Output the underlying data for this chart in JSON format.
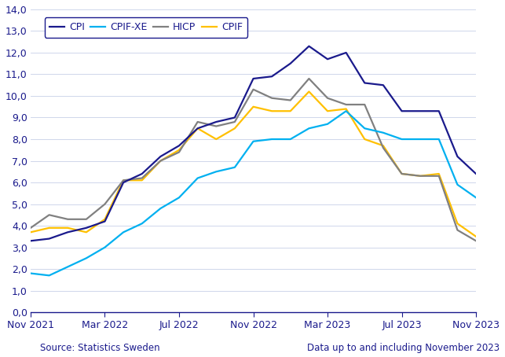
{
  "source_text": "Source: Statistics Sweden",
  "data_note": "Data up to and including November 2023",
  "ylim": [
    0.0,
    14.0
  ],
  "yticks": [
    0.0,
    1.0,
    2.0,
    3.0,
    4.0,
    5.0,
    6.0,
    7.0,
    8.0,
    9.0,
    10.0,
    11.0,
    12.0,
    13.0,
    14.0
  ],
  "xtick_labels": [
    "Nov 2021",
    "Mar 2022",
    "Jul 2022",
    "Nov 2022",
    "Mar 2023",
    "Jul 2023",
    "Nov 2023"
  ],
  "xtick_positions": [
    0,
    4,
    8,
    12,
    16,
    20,
    24
  ],
  "colors": {
    "CPI": "#1a1a8c",
    "CPIF_XE": "#00b0f0",
    "HICP": "#808080",
    "CPIF": "#ffc000"
  },
  "background_color": "#ffffff",
  "grid_color": "#c8d0e8",
  "axis_color": "#1a1a8c",
  "text_color": "#1a1a8c",
  "CPI": [
    3.3,
    3.4,
    3.7,
    3.9,
    4.2,
    6.0,
    6.4,
    7.2,
    7.7,
    8.5,
    8.8,
    9.0,
    10.8,
    10.9,
    11.5,
    12.3,
    11.7,
    12.0,
    10.6,
    10.5,
    9.3,
    9.3,
    9.3,
    7.2,
    6.4
  ],
  "CPIF_XE": [
    1.8,
    1.7,
    2.1,
    2.5,
    3.0,
    3.7,
    4.1,
    4.8,
    5.3,
    6.2,
    6.5,
    6.7,
    7.9,
    8.0,
    8.0,
    8.5,
    8.7,
    9.3,
    8.5,
    8.3,
    8.0,
    8.0,
    8.0,
    5.9,
    5.3
  ],
  "HICP": [
    3.9,
    4.5,
    4.3,
    4.3,
    5.0,
    6.1,
    6.2,
    7.0,
    7.4,
    8.8,
    8.6,
    8.8,
    10.3,
    9.9,
    9.8,
    10.8,
    9.9,
    9.6,
    9.6,
    7.6,
    6.4,
    6.3,
    6.3,
    3.8,
    3.3
  ],
  "CPIF": [
    3.7,
    3.9,
    3.9,
    3.7,
    4.3,
    6.1,
    6.1,
    7.0,
    7.5,
    8.5,
    8.0,
    8.5,
    9.5,
    9.3,
    9.3,
    10.2,
    9.3,
    9.4,
    8.0,
    7.7,
    6.4,
    6.3,
    6.4,
    4.1,
    3.5
  ],
  "n_points": 25,
  "linewidth": 1.6
}
